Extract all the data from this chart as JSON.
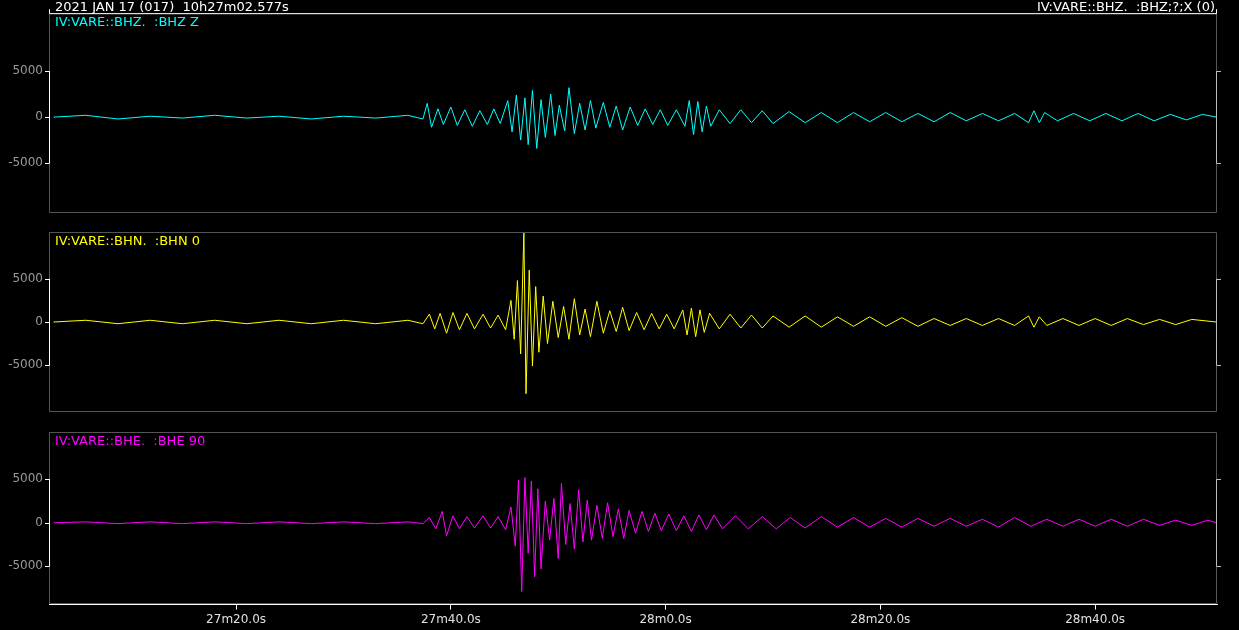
{
  "chart_data": [
    {
      "type": "line",
      "title": "2021 JAN 17 (017)  10h27m02.577s",
      "subtitle": "IV:VARE::BHZ.  :BHZ;?;X (0)",
      "legend": "top left",
      "marker": "none",
      "tick_labels": "y",
      "xlim": [
        "2021-01-17T10:27:02.577",
        "2021-01-17T10:28:51.35"
      ],
      "ylim": [
        -10400,
        11300
      ],
      "yticks": [
        -5000,
        0,
        5000
      ],
      "series": [
        {
          "name": "IV:VARE::BHZ.  :BHZ Z",
          "color": "#00ffff",
          "x": [
            "2021-01-17T10:27:03",
            "2021-01-17T10:27:06",
            "2021-01-17T10:27:09",
            "2021-01-17T10:27:12",
            "2021-01-17T10:27:15",
            "2021-01-17T10:27:18",
            "2021-01-17T10:27:21",
            "2021-01-17T10:27:24",
            "2021-01-17T10:27:27",
            "2021-01-17T10:27:30",
            "2021-01-17T10:27:33",
            "2021-01-17T10:27:36",
            "2021-01-17T10:27:37.4",
            "2021-01-17T10:27:37.8",
            "2021-01-17T10:27:38.2",
            "2021-01-17T10:27:38.8",
            "2021-01-17T10:27:39.3",
            "2021-01-17T10:27:40",
            "2021-01-17T10:27:40.6",
            "2021-01-17T10:27:41.3",
            "2021-01-17T10:27:42",
            "2021-01-17T10:27:42.7",
            "2021-01-17T10:27:43.4",
            "2021-01-17T10:27:44",
            "2021-01-17T10:27:44.6",
            "2021-01-17T10:27:45.3",
            "2021-01-17T10:27:45.7",
            "2021-01-17T10:27:46.1",
            "2021-01-17T10:27:46.5",
            "2021-01-17T10:27:46.9",
            "2021-01-17T10:27:47.2",
            "2021-01-17T10:27:47.6",
            "2021-01-17T10:27:48",
            "2021-01-17T10:27:48.4",
            "2021-01-17T10:27:48.8",
            "2021-01-17T10:27:49.3",
            "2021-01-17T10:27:49.7",
            "2021-01-17T10:27:50.1",
            "2021-01-17T10:27:50.6",
            "2021-01-17T10:27:51",
            "2021-01-17T10:27:51.5",
            "2021-01-17T10:27:52",
            "2021-01-17T10:27:52.5",
            "2021-01-17T10:27:53",
            "2021-01-17T10:27:53.5",
            "2021-01-17T10:27:54.2",
            "2021-01-17T10:27:54.8",
            "2021-01-17T10:27:55.4",
            "2021-01-17T10:27:56",
            "2021-01-17T10:27:56.7",
            "2021-01-17T10:27:57.4",
            "2021-01-17T10:27:58.1",
            "2021-01-17T10:27:58.8",
            "2021-01-17T10:27:59.5",
            "2021-01-17T10:28:00.2",
            "2021-01-17T10:28:01",
            "2021-01-17T10:28:01.8",
            "2021-01-17T10:28:02.2",
            "2021-01-17T10:28:02.6",
            "2021-01-17T10:28:03",
            "2021-01-17T10:28:03.4",
            "2021-01-17T10:28:03.8",
            "2021-01-17T10:28:04.2",
            "2021-01-17T10:28:05",
            "2021-01-17T10:28:06",
            "2021-01-17T10:28:07",
            "2021-01-17T10:28:08",
            "2021-01-17T10:28:09",
            "2021-01-17T10:28:10",
            "2021-01-17T10:28:11.5",
            "2021-01-17T10:28:13",
            "2021-01-17T10:28:14.5",
            "2021-01-17T10:28:16",
            "2021-01-17T10:28:17.5",
            "2021-01-17T10:28:19",
            "2021-01-17T10:28:20.5",
            "2021-01-17T10:28:22",
            "2021-01-17T10:28:23.5",
            "2021-01-17T10:28:25",
            "2021-01-17T10:28:26.5",
            "2021-01-17T10:28:28",
            "2021-01-17T10:28:29.5",
            "2021-01-17T10:28:31",
            "2021-01-17T10:28:32.5",
            "2021-01-17T10:28:33.8",
            "2021-01-17T10:28:34.3",
            "2021-01-17T10:28:34.8",
            "2021-01-17T10:28:35.3",
            "2021-01-17T10:28:36.5",
            "2021-01-17T10:28:38",
            "2021-01-17T10:28:39.5",
            "2021-01-17T10:28:41",
            "2021-01-17T10:28:42.5",
            "2021-01-17T10:28:44",
            "2021-01-17T10:28:45.5",
            "2021-01-17T10:28:47",
            "2021-01-17T10:28:48.5",
            "2021-01-17T10:28:50",
            "2021-01-17T10:28:51.3"
          ],
          "values": [
            0,
            200,
            -200,
            100,
            -100,
            200,
            -100,
            100,
            -200,
            100,
            -100,
            200,
            -200,
            1500,
            -1100,
            900,
            -800,
            1100,
            -900,
            800,
            -1000,
            700,
            -800,
            900,
            -700,
            1800,
            -1600,
            2400,
            -2500,
            2100,
            -3000,
            2900,
            -3400,
            1900,
            -2200,
            2500,
            -2000,
            1300,
            -1500,
            3200,
            -1800,
            1500,
            -1400,
            1800,
            -1200,
            1600,
            -1100,
            1200,
            -1400,
            1100,
            -900,
            900,
            -800,
            800,
            -900,
            800,
            -1000,
            1800,
            -1900,
            1700,
            -1600,
            1200,
            -1000,
            800,
            -700,
            800,
            -600,
            700,
            -700,
            600,
            -600,
            500,
            -600,
            500,
            -500,
            500,
            -500,
            400,
            -500,
            500,
            -400,
            400,
            -400,
            400,
            -600,
            700,
            -600,
            500,
            -400,
            400,
            -400,
            400,
            -400,
            400,
            -400,
            300,
            -300,
            300,
            0
          ]
        }
      ]
    },
    {
      "type": "line",
      "legend": "top left",
      "marker": "none",
      "tick_labels": "y",
      "xlim": [
        "2021-01-17T10:27:02.577",
        "2021-01-17T10:28:51.35"
      ],
      "ylim": [
        -10400,
        10400
      ],
      "yticks": [
        -5000,
        0,
        5000
      ],
      "series": [
        {
          "name": "IV:VARE::BHN.  :BHN 0",
          "color": "#ffff00",
          "x": [
            "2021-01-17T10:27:03",
            "2021-01-17T10:27:06",
            "2021-01-17T10:27:09",
            "2021-01-17T10:27:12",
            "2021-01-17T10:27:15",
            "2021-01-17T10:27:18",
            "2021-01-17T10:27:21",
            "2021-01-17T10:27:24",
            "2021-01-17T10:27:27",
            "2021-01-17T10:27:30",
            "2021-01-17T10:27:33",
            "2021-01-17T10:27:36",
            "2021-01-17T10:27:37.4",
            "2021-01-17T10:27:38",
            "2021-01-17T10:27:38.5",
            "2021-01-17T10:27:39",
            "2021-01-17T10:27:39.6",
            "2021-01-17T10:27:40.2",
            "2021-01-17T10:27:40.8",
            "2021-01-17T10:27:41.5",
            "2021-01-17T10:27:42.2",
            "2021-01-17T10:27:43",
            "2021-01-17T10:27:43.7",
            "2021-01-17T10:27:44.4",
            "2021-01-17T10:27:45.1",
            "2021-01-17T10:27:45.6",
            "2021-01-17T10:27:45.9",
            "2021-01-17T10:27:46.2",
            "2021-01-17T10:27:46.5",
            "2021-01-17T10:27:46.8",
            "2021-01-17T10:27:47",
            "2021-01-17T10:27:47.3",
            "2021-01-17T10:27:47.6",
            "2021-01-17T10:27:47.9",
            "2021-01-17T10:27:48.2",
            "2021-01-17T10:27:48.6",
            "2021-01-17T10:27:49",
            "2021-01-17T10:27:49.5",
            "2021-01-17T10:27:50",
            "2021-01-17T10:27:50.5",
            "2021-01-17T10:27:51",
            "2021-01-17T10:27:51.5",
            "2021-01-17T10:27:52",
            "2021-01-17T10:27:52.5",
            "2021-01-17T10:27:53",
            "2021-01-17T10:27:53.6",
            "2021-01-17T10:27:54.2",
            "2021-01-17T10:27:54.8",
            "2021-01-17T10:27:55.4",
            "2021-01-17T10:27:56",
            "2021-01-17T10:27:56.6",
            "2021-01-17T10:27:57.3",
            "2021-01-17T10:27:58",
            "2021-01-17T10:27:58.7",
            "2021-01-17T10:27:59.4",
            "2021-01-17T10:28:00.1",
            "2021-01-17T10:28:00.8",
            "2021-01-17T10:28:01.6",
            "2021-01-17T10:28:02",
            "2021-01-17T10:28:02.4",
            "2021-01-17T10:28:02.8",
            "2021-01-17T10:28:03.2",
            "2021-01-17T10:28:03.6",
            "2021-01-17T10:28:04.1",
            "2021-01-17T10:28:05",
            "2021-01-17T10:28:06",
            "2021-01-17T10:28:07",
            "2021-01-17T10:28:08",
            "2021-01-17T10:28:09",
            "2021-01-17T10:28:10",
            "2021-01-17T10:28:11.5",
            "2021-01-17T10:28:13",
            "2021-01-17T10:28:14.5",
            "2021-01-17T10:28:16",
            "2021-01-17T10:28:17.5",
            "2021-01-17T10:28:19",
            "2021-01-17T10:28:20.5",
            "2021-01-17T10:28:22",
            "2021-01-17T10:28:23.5",
            "2021-01-17T10:28:25",
            "2021-01-17T10:28:26.5",
            "2021-01-17T10:28:28",
            "2021-01-17T10:28:29.5",
            "2021-01-17T10:28:31",
            "2021-01-17T10:28:32.5",
            "2021-01-17T10:28:33.8",
            "2021-01-17T10:28:34.3",
            "2021-01-17T10:28:34.8",
            "2021-01-17T10:28:35.5",
            "2021-01-17T10:28:37",
            "2021-01-17T10:28:38.5",
            "2021-01-17T10:28:40",
            "2021-01-17T10:28:41.5",
            "2021-01-17T10:28:43",
            "2021-01-17T10:28:44.5",
            "2021-01-17T10:28:46",
            "2021-01-17T10:28:47.5",
            "2021-01-17T10:28:49",
            "2021-01-17T10:28:51.3"
          ],
          "values": [
            0,
            200,
            -200,
            200,
            -200,
            200,
            -200,
            200,
            -200,
            200,
            -200,
            200,
            -200,
            900,
            -800,
            1000,
            -1300,
            1100,
            -900,
            1000,
            -800,
            900,
            -700,
            800,
            -900,
            2500,
            -2000,
            4800,
            -3700,
            10300,
            -8300,
            6000,
            -5100,
            4100,
            -3500,
            3000,
            -2500,
            2400,
            -1800,
            1800,
            -2000,
            2700,
            -1500,
            1500,
            -1700,
            2400,
            -1300,
            1300,
            -1100,
            1700,
            -1000,
            1100,
            -900,
            1000,
            -800,
            900,
            -800,
            1400,
            -1500,
            1600,
            -1700,
            1400,
            -1200,
            1000,
            -800,
            900,
            -700,
            800,
            -700,
            700,
            -600,
            700,
            -600,
            600,
            -500,
            600,
            -500,
            500,
            -500,
            400,
            -400,
            400,
            -400,
            400,
            -400,
            700,
            -600,
            600,
            -400,
            400,
            -400,
            400,
            -400,
            400,
            -300,
            300,
            -300,
            300,
            0
          ]
        }
      ]
    },
    {
      "type": "line",
      "legend": "top left",
      "marker": "none",
      "xlim": [
        "2021-01-17T10:27:02.577",
        "2021-01-17T10:28:51.35"
      ],
      "xticks": [
        {
          "value": "2021-01-17T10:27:20",
          "label": "27m20.0s"
        },
        {
          "value": "2021-01-17T10:27:40",
          "label": "27m40.0s"
        },
        {
          "value": "2021-01-17T10:28:00",
          "label": "28m0.0s"
        },
        {
          "value": "2021-01-17T10:28:20",
          "label": "28m20.0s"
        },
        {
          "value": "2021-01-17T10:28:40",
          "label": "28m40.0s"
        }
      ],
      "ylim": [
        -9400,
        10400
      ],
      "yticks": [
        -5000,
        0,
        5000
      ],
      "series": [
        {
          "name": "IV:VARE::BHE.  :BHE 90",
          "color": "#ff00ff",
          "x": [
            "2021-01-17T10:27:03",
            "2021-01-17T10:27:06",
            "2021-01-17T10:27:09",
            "2021-01-17T10:27:12",
            "2021-01-17T10:27:15",
            "2021-01-17T10:27:18",
            "2021-01-17T10:27:21",
            "2021-01-17T10:27:24",
            "2021-01-17T10:27:27",
            "2021-01-17T10:27:30",
            "2021-01-17T10:27:33",
            "2021-01-17T10:27:36",
            "2021-01-17T10:27:37.4",
            "2021-01-17T10:27:38",
            "2021-01-17T10:27:38.6",
            "2021-01-17T10:27:39.2",
            "2021-01-17T10:27:39.6",
            "2021-01-17T10:27:40.2",
            "2021-01-17T10:27:40.8",
            "2021-01-17T10:27:41.5",
            "2021-01-17T10:27:42.2",
            "2021-01-17T10:27:43",
            "2021-01-17T10:27:43.7",
            "2021-01-17T10:27:44.4",
            "2021-01-17T10:27:45.1",
            "2021-01-17T10:27:45.6",
            "2021-01-17T10:27:46",
            "2021-01-17T10:27:46.3",
            "2021-01-17T10:27:46.6",
            "2021-01-17T10:27:46.9",
            "2021-01-17T10:27:47.2",
            "2021-01-17T10:27:47.5",
            "2021-01-17T10:27:47.8",
            "2021-01-17T10:27:48.1",
            "2021-01-17T10:27:48.4",
            "2021-01-17T10:27:48.8",
            "2021-01-17T10:27:49.2",
            "2021-01-17T10:27:49.6",
            "2021-01-17T10:27:50",
            "2021-01-17T10:27:50.3",
            "2021-01-17T10:27:50.7",
            "2021-01-17T10:27:51.1",
            "2021-01-17T10:27:51.5",
            "2021-01-17T10:27:51.9",
            "2021-01-17T10:27:52.3",
            "2021-01-17T10:27:52.7",
            "2021-01-17T10:27:53.1",
            "2021-01-17T10:27:53.6",
            "2021-01-17T10:27:54.1",
            "2021-01-17T10:27:54.6",
            "2021-01-17T10:27:55.1",
            "2021-01-17T10:27:55.6",
            "2021-01-17T10:27:56.1",
            "2021-01-17T10:27:56.6",
            "2021-01-17T10:27:57.2",
            "2021-01-17T10:27:57.8",
            "2021-01-17T10:27:58.4",
            "2021-01-17T10:27:59",
            "2021-01-17T10:27:59.6",
            "2021-01-17T10:28:00.3",
            "2021-01-17T10:28:01",
            "2021-01-17T10:28:01.7",
            "2021-01-17T10:28:02.4",
            "2021-01-17T10:28:03.1",
            "2021-01-17T10:28:03.8",
            "2021-01-17T10:28:04.5",
            "2021-01-17T10:28:05.3",
            "2021-01-17T10:28:06.5",
            "2021-01-17T10:28:07.7",
            "2021-01-17T10:28:09",
            "2021-01-17T10:28:10.3",
            "2021-01-17T10:28:11.6",
            "2021-01-17T10:28:13",
            "2021-01-17T10:28:14.5",
            "2021-01-17T10:28:16",
            "2021-01-17T10:28:17.5",
            "2021-01-17T10:28:19",
            "2021-01-17T10:28:20.5",
            "2021-01-17T10:28:22",
            "2021-01-17T10:28:23.5",
            "2021-01-17T10:28:25",
            "2021-01-17T10:28:26.5",
            "2021-01-17T10:28:28",
            "2021-01-17T10:28:29.5",
            "2021-01-17T10:28:31",
            "2021-01-17T10:28:32.5",
            "2021-01-17T10:28:34",
            "2021-01-17T10:28:35.5",
            "2021-01-17T10:28:37",
            "2021-01-17T10:28:38.5",
            "2021-01-17T10:28:40",
            "2021-01-17T10:28:41.5",
            "2021-01-17T10:28:43",
            "2021-01-17T10:28:44.5",
            "2021-01-17T10:28:46",
            "2021-01-17T10:28:47.5",
            "2021-01-17T10:28:49",
            "2021-01-17T10:28:50.5",
            "2021-01-17T10:28:51.3"
          ],
          "values": [
            0,
            100,
            -100,
            100,
            -100,
            100,
            -100,
            100,
            -100,
            100,
            -100,
            100,
            -100,
            600,
            -700,
            1300,
            -1500,
            800,
            -700,
            700,
            -600,
            800,
            -600,
            700,
            -800,
            1800,
            -2700,
            4900,
            -7900,
            5200,
            -3500,
            4800,
            -6200,
            3900,
            -5300,
            2500,
            -2000,
            2800,
            -4100,
            4500,
            -2500,
            2200,
            -3000,
            3800,
            -2200,
            2600,
            -2000,
            2000,
            -1800,
            2300,
            -1600,
            1600,
            -1800,
            1400,
            -1200,
            1300,
            -1000,
            1100,
            -900,
            1000,
            -900,
            800,
            -1000,
            900,
            -800,
            900,
            -700,
            800,
            -700,
            700,
            -700,
            600,
            -600,
            700,
            -500,
            600,
            -500,
            500,
            -500,
            500,
            -400,
            500,
            -400,
            400,
            -500,
            600,
            -400,
            400,
            -400,
            400,
            -400,
            400,
            -400,
            400,
            -300,
            300,
            -300,
            300,
            0
          ]
        }
      ]
    }
  ]
}
